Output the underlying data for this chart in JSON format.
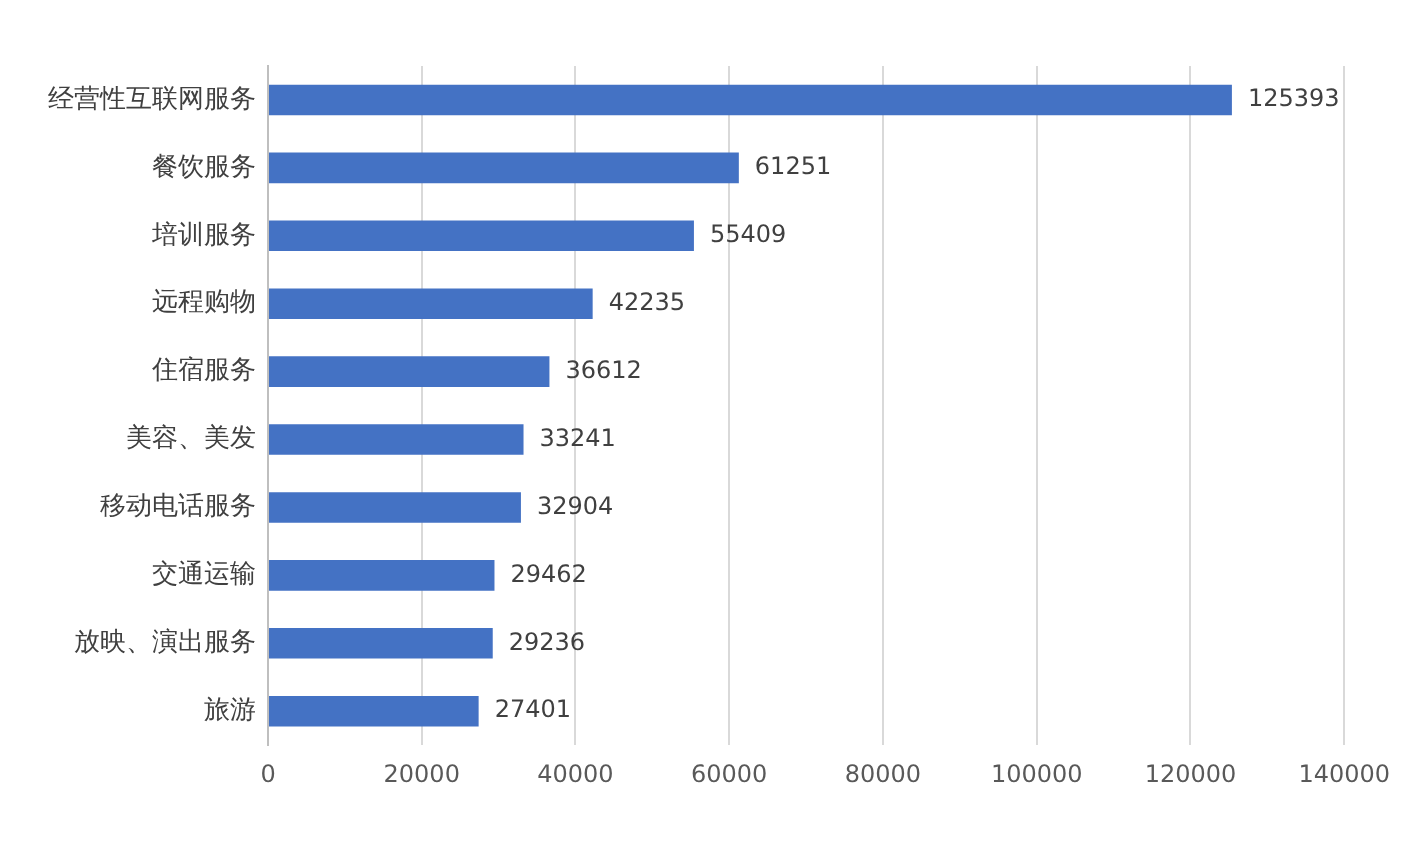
{
  "chart_data": {
    "type": "bar",
    "orientation": "horizontal",
    "categories": [
      "经营性互联网服务",
      "餐饮服务",
      "培训服务",
      "远程购物",
      "住宿服务",
      "美容、美发",
      "移动电话服务",
      "交通运输",
      "放映、演出服务",
      "旅游"
    ],
    "values": [
      125393,
      61251,
      55409,
      42235,
      36612,
      33241,
      32904,
      29462,
      29236,
      27401
    ],
    "color": "#4472c4",
    "xlim": [
      0,
      140000
    ],
    "xticks": [
      0,
      20000,
      40000,
      60000,
      80000,
      100000,
      120000,
      140000
    ],
    "grid": "x",
    "data_labels": true,
    "legend": false
  }
}
